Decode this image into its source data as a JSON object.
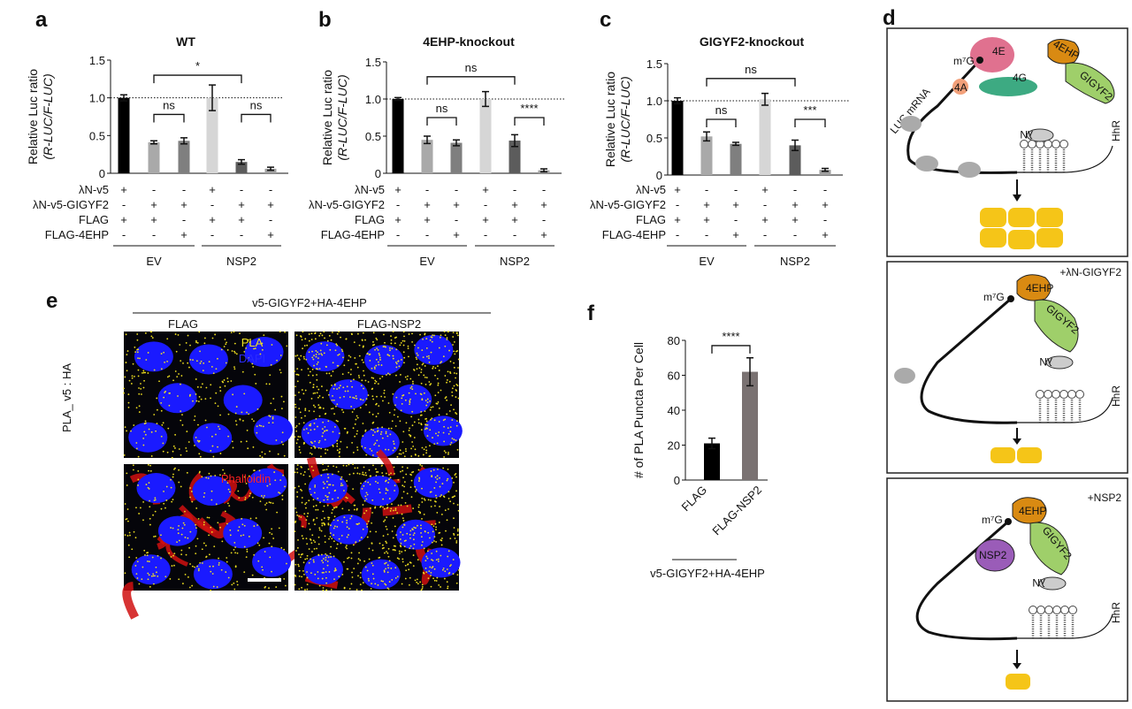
{
  "panels": {
    "a": "a",
    "b": "b",
    "c": "c",
    "d": "d",
    "e": "e",
    "f": "f"
  },
  "chart_data": [
    {
      "id": "a",
      "type": "bar",
      "title": "WT",
      "ylabel": [
        "Relative Luc ratio",
        "(R-LUC/F-LUC)"
      ],
      "ylim": [
        0,
        1.5
      ],
      "yticks": [
        "0",
        "0.5",
        "1.0",
        "1.5"
      ],
      "ytick_values": [
        0,
        0.5,
        1.0,
        1.5
      ],
      "reference_line": 1.0,
      "values": [
        1.0,
        0.41,
        0.43,
        1.0,
        0.15,
        0.06
      ],
      "errors": [
        0.04,
        0.02,
        0.04,
        0.17,
        0.03,
        0.02
      ],
      "colors": [
        "#000000",
        "#a9a9a9",
        "#7f7f7f",
        "#d6d6d6",
        "#5c5c5c",
        "#a0a0a0"
      ],
      "conditions": [
        {
          "label": "λN-v5",
          "values": [
            "+",
            "-",
            "-",
            "+",
            "-",
            "-"
          ]
        },
        {
          "label": "λN-v5-GIGYF2",
          "values": [
            "-",
            "+",
            "+",
            "-",
            "+",
            "+"
          ]
        },
        {
          "label": "FLAG",
          "values": [
            "+",
            "+",
            "-",
            "+",
            "+",
            "-"
          ]
        },
        {
          "label": "FLAG-4EHP",
          "values": [
            "-",
            "-",
            "+",
            "-",
            "-",
            "+"
          ]
        }
      ],
      "groups": [
        {
          "label": "EV",
          "bars": [
            0,
            2
          ]
        },
        {
          "label": "NSP2",
          "bars": [
            3,
            5
          ]
        }
      ],
      "significance": [
        {
          "bars": [
            1,
            4
          ],
          "level": 1.3,
          "label": "*"
        },
        {
          "bars": [
            1,
            2
          ],
          "level": 0.78,
          "label": "ns"
        },
        {
          "bars": [
            4,
            5
          ],
          "level": 0.78,
          "label": "ns"
        }
      ]
    },
    {
      "id": "b",
      "type": "bar",
      "title": "4EHP-knockout",
      "ylabel": [
        "Relative Luc ratio",
        "(R-LUC/F-LUC)"
      ],
      "ylim": [
        0,
        1.5
      ],
      "yticks": [
        "0",
        "0.5",
        "1.0",
        "1.5"
      ],
      "ytick_values": [
        0,
        0.5,
        1.0,
        1.5
      ],
      "reference_line": 1.0,
      "values": [
        1.0,
        0.45,
        0.41,
        1.0,
        0.44,
        0.04
      ],
      "errors": [
        0.02,
        0.05,
        0.04,
        0.1,
        0.08,
        0.02
      ],
      "colors": [
        "#000000",
        "#a9a9a9",
        "#7f7f7f",
        "#d6d6d6",
        "#5c5c5c",
        "#a0a0a0"
      ],
      "conditions": [
        {
          "label": "λN-v5",
          "values": [
            "+",
            "-",
            "-",
            "+",
            "-",
            "-"
          ]
        },
        {
          "label": "λN-v5-GIGYF2",
          "values": [
            "-",
            "+",
            "+",
            "-",
            "+",
            "+"
          ]
        },
        {
          "label": "FLAG",
          "values": [
            "+",
            "+",
            "-",
            "+",
            "+",
            "-"
          ]
        },
        {
          "label": "FLAG-4EHP",
          "values": [
            "-",
            "-",
            "+",
            "-",
            "-",
            "+"
          ]
        }
      ],
      "groups": [
        {
          "label": "EV",
          "bars": [
            0,
            2
          ]
        },
        {
          "label": "NSP2",
          "bars": [
            3,
            5
          ]
        }
      ],
      "significance": [
        {
          "bars": [
            1,
            4
          ],
          "level": 1.3,
          "label": "ns"
        },
        {
          "bars": [
            1,
            2
          ],
          "level": 0.75,
          "label": "ns"
        },
        {
          "bars": [
            4,
            5
          ],
          "level": 0.75,
          "label": "****"
        }
      ]
    },
    {
      "id": "c",
      "type": "bar",
      "title": "GIGYF2-knockout",
      "ylabel": [
        "Relative Luc ratio",
        "(R-LUC/F-LUC)"
      ],
      "ylim": [
        0,
        1.5
      ],
      "yticks": [
        "0",
        "0.5",
        "1.0",
        "1.5"
      ],
      "ytick_values": [
        0,
        0.5,
        1.0,
        1.5
      ],
      "reference_line": 1.0,
      "values": [
        1.0,
        0.52,
        0.42,
        1.02,
        0.4,
        0.07
      ],
      "errors": [
        0.04,
        0.06,
        0.02,
        0.08,
        0.07,
        0.02
      ],
      "colors": [
        "#000000",
        "#a9a9a9",
        "#7f7f7f",
        "#d6d6d6",
        "#5c5c5c",
        "#a0a0a0"
      ],
      "conditions": [
        {
          "label": "λN-v5",
          "values": [
            "+",
            "-",
            "-",
            "+",
            "-",
            "-"
          ]
        },
        {
          "label": "λN-v5-GIGYF2",
          "values": [
            "-",
            "+",
            "+",
            "-",
            "+",
            "+"
          ]
        },
        {
          "label": "FLAG",
          "values": [
            "+",
            "+",
            "-",
            "+",
            "+",
            "-"
          ]
        },
        {
          "label": "FLAG-4EHP",
          "values": [
            "-",
            "-",
            "+",
            "-",
            "-",
            "+"
          ]
        }
      ],
      "groups": [
        {
          "label": "EV",
          "bars": [
            0,
            2
          ]
        },
        {
          "label": "NSP2",
          "bars": [
            3,
            5
          ]
        }
      ],
      "significance": [
        {
          "bars": [
            1,
            4
          ],
          "level": 1.3,
          "label": "ns"
        },
        {
          "bars": [
            1,
            2
          ],
          "level": 0.75,
          "label": "ns"
        },
        {
          "bars": [
            4,
            5
          ],
          "level": 0.75,
          "label": "***"
        }
      ]
    },
    {
      "id": "f",
      "type": "bar",
      "ylabel": [
        "# of PLA Puncta Per Cell"
      ],
      "ylim": [
        0,
        80
      ],
      "yticks": [
        "0",
        "20",
        "40",
        "60",
        "80"
      ],
      "ytick_values": [
        0,
        20,
        40,
        60,
        80
      ],
      "categories": [
        "FLAG",
        "FLAG-NSP2"
      ],
      "values": [
        21,
        62
      ],
      "errors": [
        3,
        8
      ],
      "colors": [
        "#000000",
        "#7a7272"
      ],
      "group_label": "v5-GIGYF2+HA-4EHP",
      "significance": [
        {
          "bars": [
            0,
            1
          ],
          "level": 77,
          "label": "****"
        }
      ]
    }
  ],
  "panel_d": {
    "top": {
      "mrna": "LUC mRNA",
      "cap": "m⁷G",
      "eif4e": "4E",
      "eif4g": "4G",
      "eif4a": "4A",
      "ehp": "4EHP",
      "gigyf2": "GIGYF2",
      "lambda": "λN",
      "hhr": "HhR"
    },
    "middle": {
      "condition": "+λN-GIGYF2",
      "cap": "m⁷G",
      "ehp": "4EHP",
      "gigyf2": "GIGYF2",
      "lambda": "λN",
      "hhr": "HhR"
    },
    "bottom": {
      "condition": "+NSP2",
      "cap": "m⁷G",
      "ehp": "4EHP",
      "gigyf2": "GIGYF2",
      "nsp2": "NSP2",
      "lambda": "λN",
      "hhr": "HhR"
    },
    "colors": {
      "eif4e": "#e0718f",
      "eif4g": "#3daa82",
      "eif4a": "#f2a07a",
      "ehp": "#d98a12",
      "gigyf2": "#9fcf6a",
      "nsp2": "#9a5cb8",
      "luciferase": "#f5c518"
    }
  },
  "panel_e": {
    "group_title": "v5-GIGYF2+HA-4EHP",
    "columns": [
      "FLAG",
      "FLAG-NSP2"
    ],
    "row_label": "PLA_ v5 : HA",
    "channels": {
      "pla": "PLA",
      "dapi": "DAPI",
      "phalloidin": "Phalloidin"
    },
    "colors": {
      "pla": "#f0e020",
      "dapi": "#1a1aff",
      "phalloidin": "#e01010"
    }
  }
}
